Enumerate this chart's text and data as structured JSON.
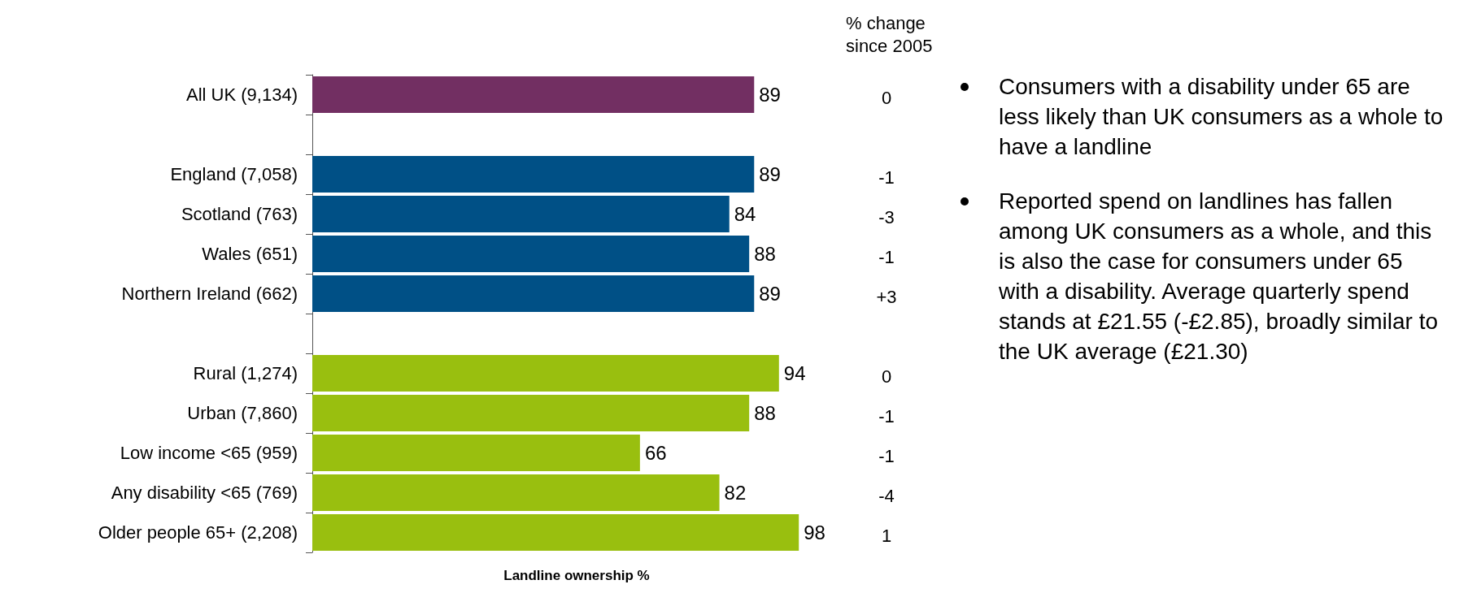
{
  "chart_data": {
    "type": "bar",
    "orientation": "horizontal",
    "xlabel": "Landline ownership %",
    "categories": [
      "All UK (9,134)",
      null,
      "England (7,058)",
      "Scotland (763)",
      "Wales (651)",
      "Northern Ireland (662)",
      null,
      "Rural (1,274)",
      "Urban (7,860)",
      "Low income <65 (959)",
      "Any disability <65 (769)",
      "Older people 65+ (2,208)"
    ],
    "values": [
      89,
      null,
      89,
      84,
      88,
      89,
      null,
      94,
      88,
      66,
      82,
      98
    ],
    "colors": [
      "#722f62",
      null,
      "#005086",
      "#005086",
      "#005086",
      "#005086",
      null,
      "#99bf0f",
      "#99bf0f",
      "#99bf0f",
      "#99bf0f",
      "#99bf0f"
    ],
    "data_labels": true,
    "annotations": [
      "% change since 2005",
      "0",
      null,
      "-1",
      "-3",
      "-1",
      "+3",
      null,
      "0",
      "-1",
      "-1",
      "-4",
      "1",
      "Consumers with a disability under 65 are less likely than UK consumers as a whole to have a landline",
      "Reported spend on landlines has fallen among UK consumers as a whole, and this is also the case for consumers under 65 with a disability. Average quarterly spend stands at £21.55 (-£2.85), broadly similar to the UK average (£21.30)"
    ]
  }
}
